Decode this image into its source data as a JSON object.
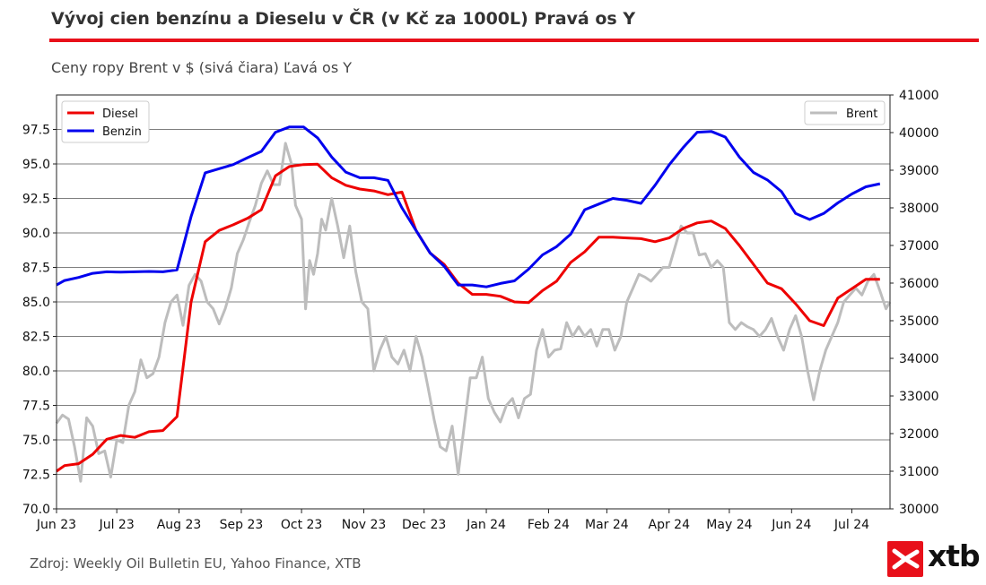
{
  "header": {
    "title": "Vývoj cien benzínu a Dieselu v ČR (v Kč za 1000L) Pravá os Y",
    "subtitle": "Ceny ropy Brent v $ (sivá čiara) Ľavá os Y"
  },
  "footer": {
    "source": "Zdroj: Weekly Oil Bulletin EU, Yahoo Finance, XTB",
    "logo_text": "xtb"
  },
  "colors": {
    "accent": "#e8101a",
    "diesel": "#ee0000",
    "benzin": "#0000ee",
    "brent": "#bdbdbd"
  },
  "chart_data": {
    "type": "line",
    "x_ticks": [
      "Jun 23",
      "Jul 23",
      "Aug 23",
      "Sep 23",
      "Oct 23",
      "Nov 23",
      "Dec 23",
      "Jan 24",
      "Feb 24",
      "Mar 24",
      "Apr 24",
      "May 24",
      "Jun 24",
      "Jul 24"
    ],
    "x_range": [
      "2023-06-01",
      "2024-07-20"
    ],
    "left_axis": {
      "ylim": [
        70,
        100
      ],
      "ticks": [
        "70.0",
        "72.5",
        "75.0",
        "77.5",
        "80.0",
        "82.5",
        "85.0",
        "87.5",
        "90.0",
        "92.5",
        "95.0",
        "97.5"
      ]
    },
    "right_axis": {
      "ylim": [
        30000,
        41000
      ],
      "ticks": [
        "30000",
        "31000",
        "32000",
        "33000",
        "34000",
        "35000",
        "36000",
        "37000",
        "38000",
        "39000",
        "40000",
        "41000"
      ]
    },
    "grid": "horizontal",
    "legends": [
      {
        "placement": "top-left",
        "entries": [
          "Diesel",
          "Benzin"
        ]
      },
      {
        "placement": "top-right",
        "entries": [
          "Brent"
        ]
      }
    ],
    "series": [
      {
        "name": "Diesel",
        "axis": "right",
        "x": [
          "2023-06-01",
          "2023-06-05",
          "2023-06-12",
          "2023-06-19",
          "2023-06-26",
          "2023-07-03",
          "2023-07-10",
          "2023-07-17",
          "2023-07-24",
          "2023-07-31",
          "2023-08-07",
          "2023-08-14",
          "2023-08-21",
          "2023-08-28",
          "2023-09-04",
          "2023-09-11",
          "2023-09-18",
          "2023-09-25",
          "2023-10-02",
          "2023-10-09",
          "2023-10-16",
          "2023-10-23",
          "2023-10-30",
          "2023-11-06",
          "2023-11-13",
          "2023-11-20",
          "2023-11-27",
          "2023-12-04",
          "2023-12-11",
          "2023-12-18",
          "2023-12-25",
          "2024-01-01",
          "2024-01-08",
          "2024-01-15",
          "2024-01-22",
          "2024-01-29",
          "2024-02-05",
          "2024-02-12",
          "2024-02-19",
          "2024-02-26",
          "2024-03-04",
          "2024-03-11",
          "2024-03-18",
          "2024-03-25",
          "2024-04-01",
          "2024-04-08",
          "2024-04-15",
          "2024-04-22",
          "2024-04-29",
          "2024-05-06",
          "2024-05-13",
          "2024-05-20",
          "2024-05-27",
          "2024-06-03",
          "2024-06-10",
          "2024-06-17",
          "2024-06-24",
          "2024-07-01",
          "2024-07-08",
          "2024-07-15"
        ],
        "values": [
          31000,
          31150,
          31200,
          31450,
          31850,
          31950,
          31900,
          32050,
          32080,
          32450,
          35500,
          37100,
          37400,
          37550,
          37720,
          37950,
          38850,
          39100,
          39150,
          39160,
          38800,
          38600,
          38500,
          38450,
          38350,
          38420,
          37400,
          36800,
          36500,
          36000,
          35700,
          35700,
          35650,
          35500,
          35480,
          35800,
          36050,
          36550,
          36830,
          37220,
          37220,
          37200,
          37180,
          37100,
          37200,
          37450,
          37600,
          37650,
          37450,
          37000,
          36500,
          36000,
          35850,
          35450,
          35000,
          34870,
          35600,
          35850,
          36100,
          36100
        ]
      },
      {
        "name": "Benzin",
        "axis": "right",
        "x": [
          "2023-06-01",
          "2023-06-05",
          "2023-06-12",
          "2023-06-19",
          "2023-06-26",
          "2023-07-03",
          "2023-07-10",
          "2023-07-17",
          "2023-07-24",
          "2023-07-31",
          "2023-08-07",
          "2023-08-14",
          "2023-08-21",
          "2023-08-28",
          "2023-09-04",
          "2023-09-11",
          "2023-09-18",
          "2023-09-25",
          "2023-10-02",
          "2023-10-09",
          "2023-10-16",
          "2023-10-23",
          "2023-10-30",
          "2023-11-06",
          "2023-11-13",
          "2023-11-20",
          "2023-11-27",
          "2023-12-04",
          "2023-12-11",
          "2023-12-18",
          "2023-12-25",
          "2024-01-01",
          "2024-01-08",
          "2024-01-15",
          "2024-01-22",
          "2024-01-29",
          "2024-02-05",
          "2024-02-12",
          "2024-02-19",
          "2024-02-26",
          "2024-03-04",
          "2024-03-11",
          "2024-03-18",
          "2024-03-25",
          "2024-04-01",
          "2024-04-08",
          "2024-04-15",
          "2024-04-22",
          "2024-04-29",
          "2024-05-06",
          "2024-05-13",
          "2024-05-20",
          "2024-05-27",
          "2024-06-03",
          "2024-06-10",
          "2024-06-17",
          "2024-06-24",
          "2024-07-01",
          "2024-07-08",
          "2024-07-15"
        ],
        "values": [
          35950,
          36070,
          36150,
          36260,
          36300,
          36290,
          36300,
          36310,
          36300,
          36350,
          37770,
          38930,
          39040,
          39150,
          39330,
          39500,
          40010,
          40150,
          40150,
          39860,
          39350,
          38950,
          38800,
          38800,
          38730,
          38000,
          37400,
          36800,
          36450,
          35950,
          35950,
          35900,
          35990,
          36060,
          36370,
          36750,
          36970,
          37300,
          37950,
          38100,
          38250,
          38200,
          38120,
          38600,
          39140,
          39600,
          40010,
          40030,
          39880,
          39350,
          38940,
          38740,
          38430,
          37850,
          37690,
          37850,
          38130,
          38370,
          38560,
          38640
        ]
      },
      {
        "name": "Brent",
        "axis": "left",
        "x": [
          "2023-06-01",
          "2023-06-04",
          "2023-06-07",
          "2023-06-10",
          "2023-06-13",
          "2023-06-16",
          "2023-06-19",
          "2023-06-22",
          "2023-06-25",
          "2023-06-28",
          "2023-07-01",
          "2023-07-04",
          "2023-07-07",
          "2023-07-10",
          "2023-07-13",
          "2023-07-16",
          "2023-07-19",
          "2023-07-22",
          "2023-07-25",
          "2023-07-28",
          "2023-07-31",
          "2023-08-03",
          "2023-08-06",
          "2023-08-09",
          "2023-08-12",
          "2023-08-15",
          "2023-08-18",
          "2023-08-21",
          "2023-08-24",
          "2023-08-27",
          "2023-08-30",
          "2023-09-02",
          "2023-09-05",
          "2023-09-08",
          "2023-09-11",
          "2023-09-14",
          "2023-09-17",
          "2023-09-20",
          "2023-09-23",
          "2023-09-26",
          "2023-09-28",
          "2023-10-01",
          "2023-10-03",
          "2023-10-05",
          "2023-10-07",
          "2023-10-09",
          "2023-10-11",
          "2023-10-13",
          "2023-10-16",
          "2023-10-19",
          "2023-10-22",
          "2023-10-25",
          "2023-10-28",
          "2023-10-31",
          "2023-11-03",
          "2023-11-06",
          "2023-11-09",
          "2023-11-12",
          "2023-11-15",
          "2023-11-18",
          "2023-11-21",
          "2023-11-24",
          "2023-11-27",
          "2023-11-30",
          "2023-12-03",
          "2023-12-06",
          "2023-12-09",
          "2023-12-12",
          "2023-12-15",
          "2023-12-18",
          "2023-12-21",
          "2023-12-24",
          "2023-12-27",
          "2023-12-30",
          "2024-01-02",
          "2024-01-05",
          "2024-01-08",
          "2024-01-11",
          "2024-01-14",
          "2024-01-17",
          "2024-01-20",
          "2024-01-23",
          "2024-01-26",
          "2024-01-29",
          "2024-02-01",
          "2024-02-04",
          "2024-02-07",
          "2024-02-10",
          "2024-02-13",
          "2024-02-16",
          "2024-02-19",
          "2024-02-22",
          "2024-02-25",
          "2024-02-28",
          "2024-03-02",
          "2024-03-05",
          "2024-03-08",
          "2024-03-11",
          "2024-03-14",
          "2024-03-17",
          "2024-03-20",
          "2024-03-23",
          "2024-03-26",
          "2024-03-29",
          "2024-04-01",
          "2024-04-04",
          "2024-04-07",
          "2024-04-10",
          "2024-04-13",
          "2024-04-16",
          "2024-04-19",
          "2024-04-22",
          "2024-04-25",
          "2024-04-28",
          "2024-05-01",
          "2024-05-04",
          "2024-05-07",
          "2024-05-10",
          "2024-05-13",
          "2024-05-16",
          "2024-05-19",
          "2024-05-22",
          "2024-05-25",
          "2024-05-28",
          "2024-05-31",
          "2024-06-03",
          "2024-06-06",
          "2024-06-09",
          "2024-06-12",
          "2024-06-15",
          "2024-06-18",
          "2024-06-21",
          "2024-06-24",
          "2024-06-27",
          "2024-06-30",
          "2024-07-03",
          "2024-07-06",
          "2024-07-09",
          "2024-07-12",
          "2024-07-15",
          "2024-07-18",
          "2024-07-20"
        ],
        "values": [
          76.2,
          76.8,
          76.5,
          74.5,
          72.0,
          76.6,
          76.0,
          74.0,
          74.2,
          72.3,
          75.0,
          74.8,
          77.5,
          78.5,
          80.8,
          79.5,
          79.8,
          81.0,
          83.5,
          85.0,
          85.5,
          83.3,
          86.2,
          87.0,
          86.5,
          85.0,
          84.5,
          83.4,
          84.5,
          86.0,
          88.5,
          89.5,
          90.8,
          92.0,
          93.6,
          94.5,
          93.5,
          93.5,
          96.5,
          95.0,
          92.0,
          91.0,
          84.5,
          88.0,
          87.0,
          88.5,
          91.0,
          90.2,
          92.5,
          90.5,
          88.2,
          90.5,
          87.2,
          85.0,
          84.5,
          80.0,
          81.5,
          82.5,
          81.0,
          80.5,
          81.5,
          80.0,
          82.5,
          81.0,
          78.8,
          76.5,
          74.5,
          74.2,
          76.0,
          72.5,
          76.0,
          79.5,
          79.5,
          81.0,
          78.0,
          77.0,
          76.3,
          77.5,
          78.0,
          76.6,
          78.0,
          78.3,
          81.5,
          83.0,
          81.0,
          81.5,
          81.6,
          83.5,
          82.5,
          83.2,
          82.5,
          83.0,
          81.8,
          83.0,
          83.0,
          81.5,
          82.5,
          85.0,
          86.0,
          87.0,
          86.8,
          86.5,
          87.0,
          87.5,
          87.5,
          89.0,
          90.5,
          90.0,
          90.0,
          88.4,
          88.5,
          87.5,
          88.0,
          87.5,
          83.5,
          83.0,
          83.5,
          83.2,
          83.0,
          82.5,
          83.0,
          83.8,
          82.5,
          81.5,
          83.0,
          84.0,
          82.5,
          80.0,
          77.9,
          80.0,
          81.5,
          82.5,
          83.5,
          85.0,
          85.5,
          86.0,
          85.5,
          86.5,
          87.0,
          85.8,
          84.5,
          85.0
        ]
      }
    ]
  }
}
